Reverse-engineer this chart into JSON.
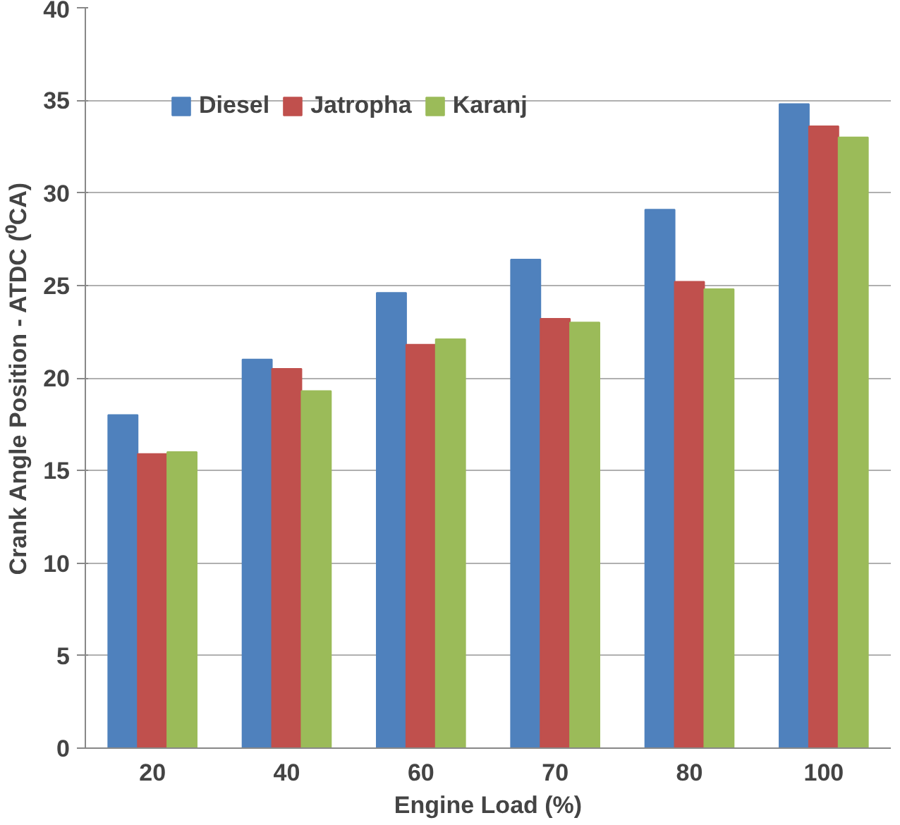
{
  "chart_data": {
    "type": "bar",
    "xlabel": "Engine Load (%)",
    "ylabel": "Crank Angle Position - ATDC (⁰CA)",
    "categories": [
      "20",
      "40",
      "60",
      "70",
      "80",
      "100"
    ],
    "series": [
      {
        "name": "Diesel",
        "color": "#4f81bd",
        "values": [
          18,
          21,
          24.6,
          26.4,
          29.1,
          34.8
        ]
      },
      {
        "name": "Jatropha",
        "color": "#c0504d",
        "values": [
          15.9,
          20.5,
          21.8,
          23.2,
          25.2,
          33.6
        ]
      },
      {
        "name": "Karanj",
        "color": "#9bbb59",
        "values": [
          16,
          19.3,
          22.1,
          23,
          24.8,
          33
        ]
      }
    ],
    "ylim": [
      0,
      40
    ],
    "yticks": [
      0,
      5,
      10,
      15,
      20,
      25,
      30,
      35,
      40
    ],
    "grid": "y",
    "legend": "top left"
  }
}
